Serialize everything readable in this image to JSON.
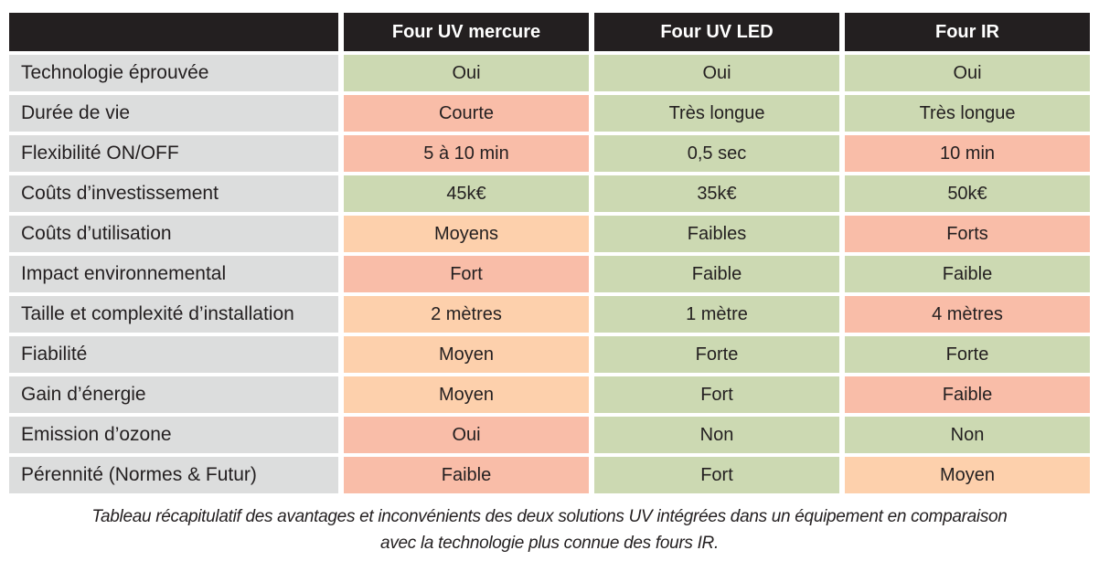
{
  "colors": {
    "header_bg": "#231f20",
    "header_text": "#ffffff",
    "label_bg": "#dcdddd",
    "good": "#ccd9b2",
    "medium": "#fdd0ac",
    "bad": "#f9bda8",
    "text": "#231f20"
  },
  "table": {
    "columns": [
      "Four UV mercure",
      "Four UV LED",
      "Four IR"
    ],
    "rows": [
      {
        "label": "Technologie éprouvée",
        "cells": [
          {
            "text": "Oui",
            "tone": "good"
          },
          {
            "text": "Oui",
            "tone": "good"
          },
          {
            "text": "Oui",
            "tone": "good"
          }
        ]
      },
      {
        "label": "Durée de vie",
        "cells": [
          {
            "text": "Courte",
            "tone": "bad"
          },
          {
            "text": "Très longue",
            "tone": "good"
          },
          {
            "text": "Très longue",
            "tone": "good"
          }
        ]
      },
      {
        "label": "Flexibilité ON/OFF",
        "cells": [
          {
            "text": "5 à 10 min",
            "tone": "bad"
          },
          {
            "text": "0,5 sec",
            "tone": "good"
          },
          {
            "text": "10 min",
            "tone": "bad"
          }
        ]
      },
      {
        "label": "Coûts d’investissement",
        "cells": [
          {
            "text": "45k€",
            "tone": "good"
          },
          {
            "text": "35k€",
            "tone": "good"
          },
          {
            "text": "50k€",
            "tone": "good"
          }
        ]
      },
      {
        "label": "Coûts d’utilisation",
        "cells": [
          {
            "text": "Moyens",
            "tone": "medium"
          },
          {
            "text": "Faibles",
            "tone": "good"
          },
          {
            "text": "Forts",
            "tone": "bad"
          }
        ]
      },
      {
        "label": "Impact environnemental",
        "cells": [
          {
            "text": "Fort",
            "tone": "bad"
          },
          {
            "text": "Faible",
            "tone": "good"
          },
          {
            "text": "Faible",
            "tone": "good"
          }
        ]
      },
      {
        "label": "Taille et complexité d’installation",
        "cells": [
          {
            "text": "2 mètres",
            "tone": "medium"
          },
          {
            "text": "1 mètre",
            "tone": "good"
          },
          {
            "text": "4 mètres",
            "tone": "bad"
          }
        ]
      },
      {
        "label": "Fiabilité",
        "cells": [
          {
            "text": "Moyen",
            "tone": "medium"
          },
          {
            "text": "Forte",
            "tone": "good"
          },
          {
            "text": "Forte",
            "tone": "good"
          }
        ]
      },
      {
        "label": "Gain d’énergie",
        "cells": [
          {
            "text": "Moyen",
            "tone": "medium"
          },
          {
            "text": "Fort",
            "tone": "good"
          },
          {
            "text": "Faible",
            "tone": "bad"
          }
        ]
      },
      {
        "label": "Emission d’ozone",
        "cells": [
          {
            "text": "Oui",
            "tone": "bad"
          },
          {
            "text": "Non",
            "tone": "good"
          },
          {
            "text": "Non",
            "tone": "good"
          }
        ]
      },
      {
        "label": "Pérennité (Normes & Futur)",
        "cells": [
          {
            "text": "Faible",
            "tone": "bad"
          },
          {
            "text": "Fort",
            "tone": "good"
          },
          {
            "text": "Moyen",
            "tone": "medium"
          }
        ]
      }
    ]
  },
  "caption": "Tableau récapitulatif des avantages et inconvénients des deux solutions UV intégrées dans un équipement en comparaison avec la technologie plus connue des fours IR."
}
